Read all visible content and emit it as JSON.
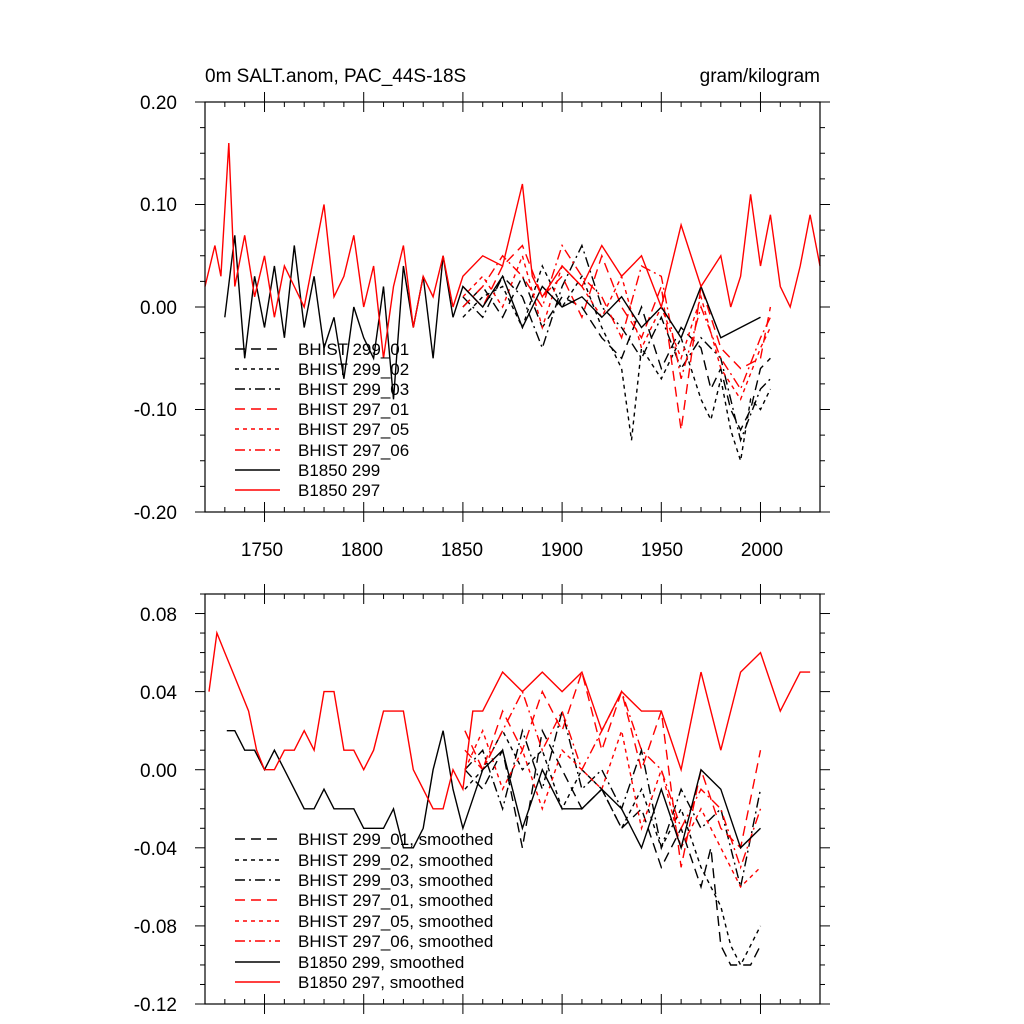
{
  "colors": {
    "black": "#000000",
    "red": "#ff0000"
  },
  "chart_data": [
    {
      "type": "line",
      "title": "0m SALT.anom, PAC_44S-18S",
      "units": "gram/kilogram",
      "xlim": [
        1720,
        2030
      ],
      "ylim": [
        -0.2,
        0.2
      ],
      "yticks": [
        "0.20",
        "0.10",
        "0.00",
        "-0.10",
        "-0.20"
      ],
      "xticks": [
        "1750",
        "1800",
        "1850",
        "1900",
        "1950",
        "2000"
      ],
      "grid": false,
      "legend": "bottom-left",
      "series": [
        {
          "name": "BHIST 299_01",
          "color": "#000000",
          "dash": "long",
          "x": [
            1850,
            1860,
            1870,
            1880,
            1890,
            1900,
            1910,
            1920,
            1930,
            1940,
            1950,
            1960,
            1970,
            1975,
            1980,
            1985,
            1990,
            1995,
            2000,
            2005
          ],
          "y": [
            0.0,
            0.02,
            -0.01,
            0.03,
            -0.02,
            0.01,
            0.0,
            -0.03,
            -0.05,
            0.0,
            -0.06,
            -0.02,
            -0.04,
            -0.08,
            -0.06,
            -0.1,
            -0.12,
            -0.1,
            -0.06,
            -0.05
          ]
        },
        {
          "name": "BHIST 299_02",
          "color": "#000000",
          "dash": "short",
          "x": [
            1850,
            1860,
            1870,
            1880,
            1890,
            1900,
            1910,
            1920,
            1930,
            1935,
            1940,
            1950,
            1960,
            1970,
            1975,
            1980,
            1985,
            1990,
            1995,
            2000,
            2005
          ],
          "y": [
            -0.01,
            0.01,
            0.02,
            -0.02,
            0.04,
            0.0,
            0.03,
            -0.02,
            -0.06,
            -0.13,
            -0.04,
            -0.07,
            -0.03,
            -0.09,
            -0.11,
            -0.07,
            -0.12,
            -0.15,
            -0.09,
            -0.1,
            -0.08
          ]
        },
        {
          "name": "BHIST 299_03",
          "color": "#000000",
          "dash": "dashdot",
          "x": [
            1850,
            1860,
            1870,
            1880,
            1890,
            1900,
            1910,
            1920,
            1930,
            1940,
            1950,
            1960,
            1970,
            1980,
            1990,
            2000,
            2005
          ],
          "y": [
            0.01,
            -0.01,
            0.03,
            0.01,
            -0.04,
            0.02,
            0.06,
            0.0,
            -0.02,
            -0.05,
            -0.01,
            -0.06,
            -0.03,
            -0.05,
            -0.13,
            -0.08,
            -0.07
          ]
        },
        {
          "name": "BHIST 297_01",
          "color": "#ff0000",
          "dash": "long",
          "x": [
            1850,
            1860,
            1870,
            1880,
            1890,
            1900,
            1910,
            1920,
            1930,
            1940,
            1950,
            1960,
            1970,
            1980,
            1990,
            2000,
            2005
          ],
          "y": [
            0.02,
            0.0,
            0.04,
            0.06,
            0.01,
            0.03,
            -0.01,
            0.05,
            0.0,
            -0.03,
            0.02,
            -0.12,
            0.02,
            -0.04,
            -0.06,
            -0.05,
            0.0
          ]
        },
        {
          "name": "BHIST 297_05",
          "color": "#ff0000",
          "dash": "short",
          "x": [
            1850,
            1860,
            1870,
            1880,
            1890,
            1900,
            1910,
            1920,
            1930,
            1940,
            1950,
            1960,
            1970,
            1980,
            1990,
            2000,
            2005
          ],
          "y": [
            0.01,
            0.03,
            0.0,
            0.05,
            -0.02,
            0.04,
            0.02,
            -0.01,
            0.03,
            -0.04,
            0.0,
            -0.05,
            0.01,
            -0.06,
            -0.09,
            -0.04,
            -0.02
          ]
        },
        {
          "name": "BHIST 297_06",
          "color": "#ff0000",
          "dash": "dashdot",
          "x": [
            1850,
            1860,
            1870,
            1880,
            1890,
            1900,
            1910,
            1920,
            1930,
            1940,
            1950,
            1960,
            1970,
            1980,
            1990,
            2000,
            2005
          ],
          "y": [
            0.0,
            0.02,
            0.05,
            0.03,
            0.0,
            0.06,
            0.03,
            0.01,
            -0.03,
            0.04,
            0.03,
            -0.07,
            0.0,
            -0.05,
            -0.08,
            -0.03,
            -0.01
          ]
        },
        {
          "name": "B1850 299",
          "color": "#000000",
          "dash": "solid",
          "x": [
            1730,
            1735,
            1740,
            1745,
            1750,
            1755,
            1760,
            1765,
            1770,
            1775,
            1780,
            1785,
            1790,
            1795,
            1800,
            1805,
            1810,
            1815,
            1820,
            1825,
            1830,
            1835,
            1840,
            1845,
            1850,
            1860,
            1870,
            1880,
            1890,
            1900,
            1910,
            1920,
            1930,
            1940,
            1950,
            1960,
            1970,
            1980,
            1990,
            2000
          ],
          "y": [
            -0.01,
            0.07,
            -0.05,
            0.03,
            -0.02,
            0.04,
            -0.03,
            0.06,
            -0.02,
            0.03,
            -0.04,
            -0.01,
            -0.07,
            0.0,
            -0.03,
            -0.05,
            0.02,
            -0.09,
            0.04,
            -0.02,
            0.03,
            -0.05,
            0.05,
            -0.01,
            0.02,
            0.0,
            0.03,
            -0.02,
            0.02,
            0.0,
            0.01,
            -0.01,
            0.01,
            -0.02,
            0.0,
            -0.03,
            0.02,
            -0.03,
            -0.02,
            -0.01
          ]
        },
        {
          "name": "B1850 297",
          "color": "#ff0000",
          "dash": "solid",
          "x": [
            1720,
            1725,
            1728,
            1732,
            1735,
            1740,
            1745,
            1750,
            1755,
            1760,
            1765,
            1770,
            1775,
            1780,
            1785,
            1790,
            1795,
            1800,
            1805,
            1810,
            1815,
            1820,
            1825,
            1830,
            1835,
            1840,
            1845,
            1850,
            1860,
            1870,
            1880,
            1885,
            1890,
            1900,
            1910,
            1920,
            1930,
            1940,
            1950,
            1960,
            1970,
            1980,
            1985,
            1990,
            1995,
            2000,
            2005,
            2010,
            2015,
            2020,
            2025,
            2030
          ],
          "y": [
            0.02,
            0.06,
            0.03,
            0.16,
            0.02,
            0.07,
            0.01,
            0.05,
            -0.01,
            0.04,
            0.02,
            0.0,
            0.05,
            0.1,
            0.01,
            0.03,
            0.07,
            0.0,
            0.04,
            -0.05,
            0.02,
            0.06,
            -0.02,
            0.03,
            0.01,
            0.05,
            0.0,
            0.03,
            0.05,
            0.04,
            0.12,
            0.03,
            0.01,
            0.04,
            0.02,
            0.06,
            0.03,
            0.05,
            0.0,
            0.08,
            0.02,
            0.05,
            0.0,
            0.03,
            0.11,
            0.04,
            0.09,
            0.02,
            0.0,
            0.04,
            0.09,
            0.04
          ]
        }
      ]
    },
    {
      "type": "line",
      "xlim": [
        1720,
        2030
      ],
      "ylim": [
        -0.12,
        0.09
      ],
      "yticks": [
        "0.08",
        "0.04",
        "0.00",
        "-0.04",
        "-0.08",
        "-0.12"
      ],
      "grid": false,
      "legend": "bottom-left",
      "series": [
        {
          "name": "BHIST 299_01, smoothed",
          "color": "#000000",
          "dash": "long",
          "x": [
            1851,
            1860,
            1870,
            1880,
            1890,
            1900,
            1910,
            1920,
            1930,
            1940,
            1950,
            1960,
            1970,
            1975,
            1980,
            1985,
            1990,
            1995,
            2000
          ],
          "y": [
            0.0,
            -0.01,
            0.01,
            -0.04,
            0.02,
            0.0,
            -0.02,
            -0.01,
            -0.03,
            -0.02,
            -0.05,
            -0.03,
            -0.06,
            -0.04,
            -0.09,
            -0.1,
            -0.1,
            -0.1,
            -0.09
          ]
        },
        {
          "name": "BHIST 299_02, smoothed",
          "color": "#000000",
          "dash": "short",
          "x": [
            1851,
            1860,
            1870,
            1880,
            1890,
            1900,
            1910,
            1920,
            1930,
            1940,
            1950,
            1960,
            1970,
            1980,
            1985,
            1990,
            1995,
            2000
          ],
          "y": [
            -0.01,
            0.0,
            0.02,
            0.0,
            0.01,
            -0.02,
            0.0,
            -0.01,
            -0.03,
            -0.01,
            -0.04,
            -0.02,
            -0.05,
            -0.07,
            -0.09,
            -0.1,
            -0.09,
            -0.08
          ]
        },
        {
          "name": "BHIST 299_03, smoothed",
          "color": "#000000",
          "dash": "dashdot",
          "x": [
            1851,
            1860,
            1870,
            1880,
            1890,
            1900,
            1910,
            1920,
            1930,
            1940,
            1950,
            1960,
            1970,
            1980,
            1990,
            2000
          ],
          "y": [
            0.0,
            0.01,
            -0.02,
            0.02,
            -0.01,
            0.03,
            -0.01,
            0.0,
            -0.02,
            0.01,
            -0.04,
            -0.01,
            -0.03,
            -0.02,
            -0.06,
            -0.01
          ]
        },
        {
          "name": "BHIST 297_01, smoothed",
          "color": "#ff0000",
          "dash": "long",
          "x": [
            1851,
            1860,
            1870,
            1880,
            1890,
            1900,
            1910,
            1920,
            1930,
            1940,
            1950,
            1960,
            1970,
            1980,
            1990,
            2000
          ],
          "y": [
            0.02,
            0.0,
            0.03,
            0.01,
            0.04,
            0.02,
            0.05,
            0.01,
            0.04,
            0.0,
            0.03,
            -0.05,
            0.0,
            -0.03,
            -0.04,
            0.01
          ]
        },
        {
          "name": "BHIST 297_05, smoothed",
          "color": "#ff0000",
          "dash": "short",
          "x": [
            1851,
            1860,
            1870,
            1880,
            1890,
            1900,
            1910,
            1920,
            1930,
            1940,
            1950,
            1960,
            1970,
            1980,
            1990,
            2000
          ],
          "y": [
            0.0,
            0.02,
            -0.01,
            0.01,
            -0.02,
            0.01,
            0.0,
            -0.01,
            0.02,
            -0.03,
            0.0,
            -0.04,
            -0.02,
            -0.04,
            -0.06,
            -0.05
          ]
        },
        {
          "name": "BHIST 297_06, smoothed",
          "color": "#ff0000",
          "dash": "dashdot",
          "x": [
            1851,
            1860,
            1870,
            1880,
            1890,
            1900,
            1910,
            1920,
            1930,
            1940,
            1950,
            1960,
            1970,
            1980,
            1990,
            2000
          ],
          "y": [
            0.01,
            0.0,
            0.02,
            0.04,
            0.01,
            0.03,
            0.0,
            0.02,
            0.04,
            0.01,
            0.0,
            -0.03,
            -0.01,
            -0.02,
            -0.05,
            -0.02
          ]
        },
        {
          "name": "B1850 299, smoothed",
          "color": "#000000",
          "dash": "solid",
          "x": [
            1731,
            1735,
            1740,
            1745,
            1750,
            1755,
            1760,
            1765,
            1770,
            1775,
            1780,
            1785,
            1790,
            1795,
            1800,
            1805,
            1810,
            1815,
            1820,
            1825,
            1830,
            1835,
            1840,
            1845,
            1850,
            1860,
            1870,
            1880,
            1890,
            1900,
            1910,
            1920,
            1930,
            1940,
            1950,
            1960,
            1970,
            1980,
            1990,
            2000
          ],
          "y": [
            0.02,
            0.02,
            0.01,
            0.01,
            0.0,
            0.01,
            0.0,
            -0.01,
            -0.02,
            -0.02,
            -0.01,
            -0.02,
            -0.02,
            -0.02,
            -0.03,
            -0.03,
            -0.03,
            -0.02,
            -0.04,
            -0.04,
            -0.03,
            0.0,
            0.02,
            -0.01,
            -0.03,
            0.0,
            0.01,
            -0.03,
            0.0,
            -0.02,
            -0.02,
            -0.01,
            -0.02,
            -0.04,
            -0.01,
            -0.04,
            0.0,
            -0.01,
            -0.04,
            -0.03
          ]
        },
        {
          "name": "B1850 297, smoothed",
          "color": "#ff0000",
          "dash": "solid",
          "x": [
            1722,
            1726,
            1730,
            1734,
            1738,
            1742,
            1746,
            1750,
            1755,
            1760,
            1765,
            1770,
            1775,
            1780,
            1785,
            1790,
            1795,
            1800,
            1805,
            1810,
            1815,
            1820,
            1825,
            1830,
            1835,
            1840,
            1845,
            1850,
            1855,
            1860,
            1870,
            1880,
            1890,
            1900,
            1910,
            1920,
            1930,
            1940,
            1950,
            1960,
            1970,
            1980,
            1990,
            2000,
            2010,
            2020,
            2025
          ],
          "y": [
            0.04,
            0.07,
            0.06,
            0.05,
            0.04,
            0.03,
            0.01,
            0.0,
            0.0,
            0.01,
            0.01,
            0.02,
            0.01,
            0.04,
            0.04,
            0.01,
            0.01,
            0.0,
            0.01,
            0.03,
            0.03,
            0.03,
            0.0,
            -0.01,
            -0.02,
            -0.02,
            0.0,
            -0.01,
            0.03,
            0.03,
            0.05,
            0.04,
            0.05,
            0.04,
            0.05,
            0.02,
            0.04,
            0.03,
            0.03,
            0.0,
            0.05,
            0.01,
            0.05,
            0.06,
            0.03,
            0.05,
            0.05
          ]
        }
      ]
    }
  ]
}
